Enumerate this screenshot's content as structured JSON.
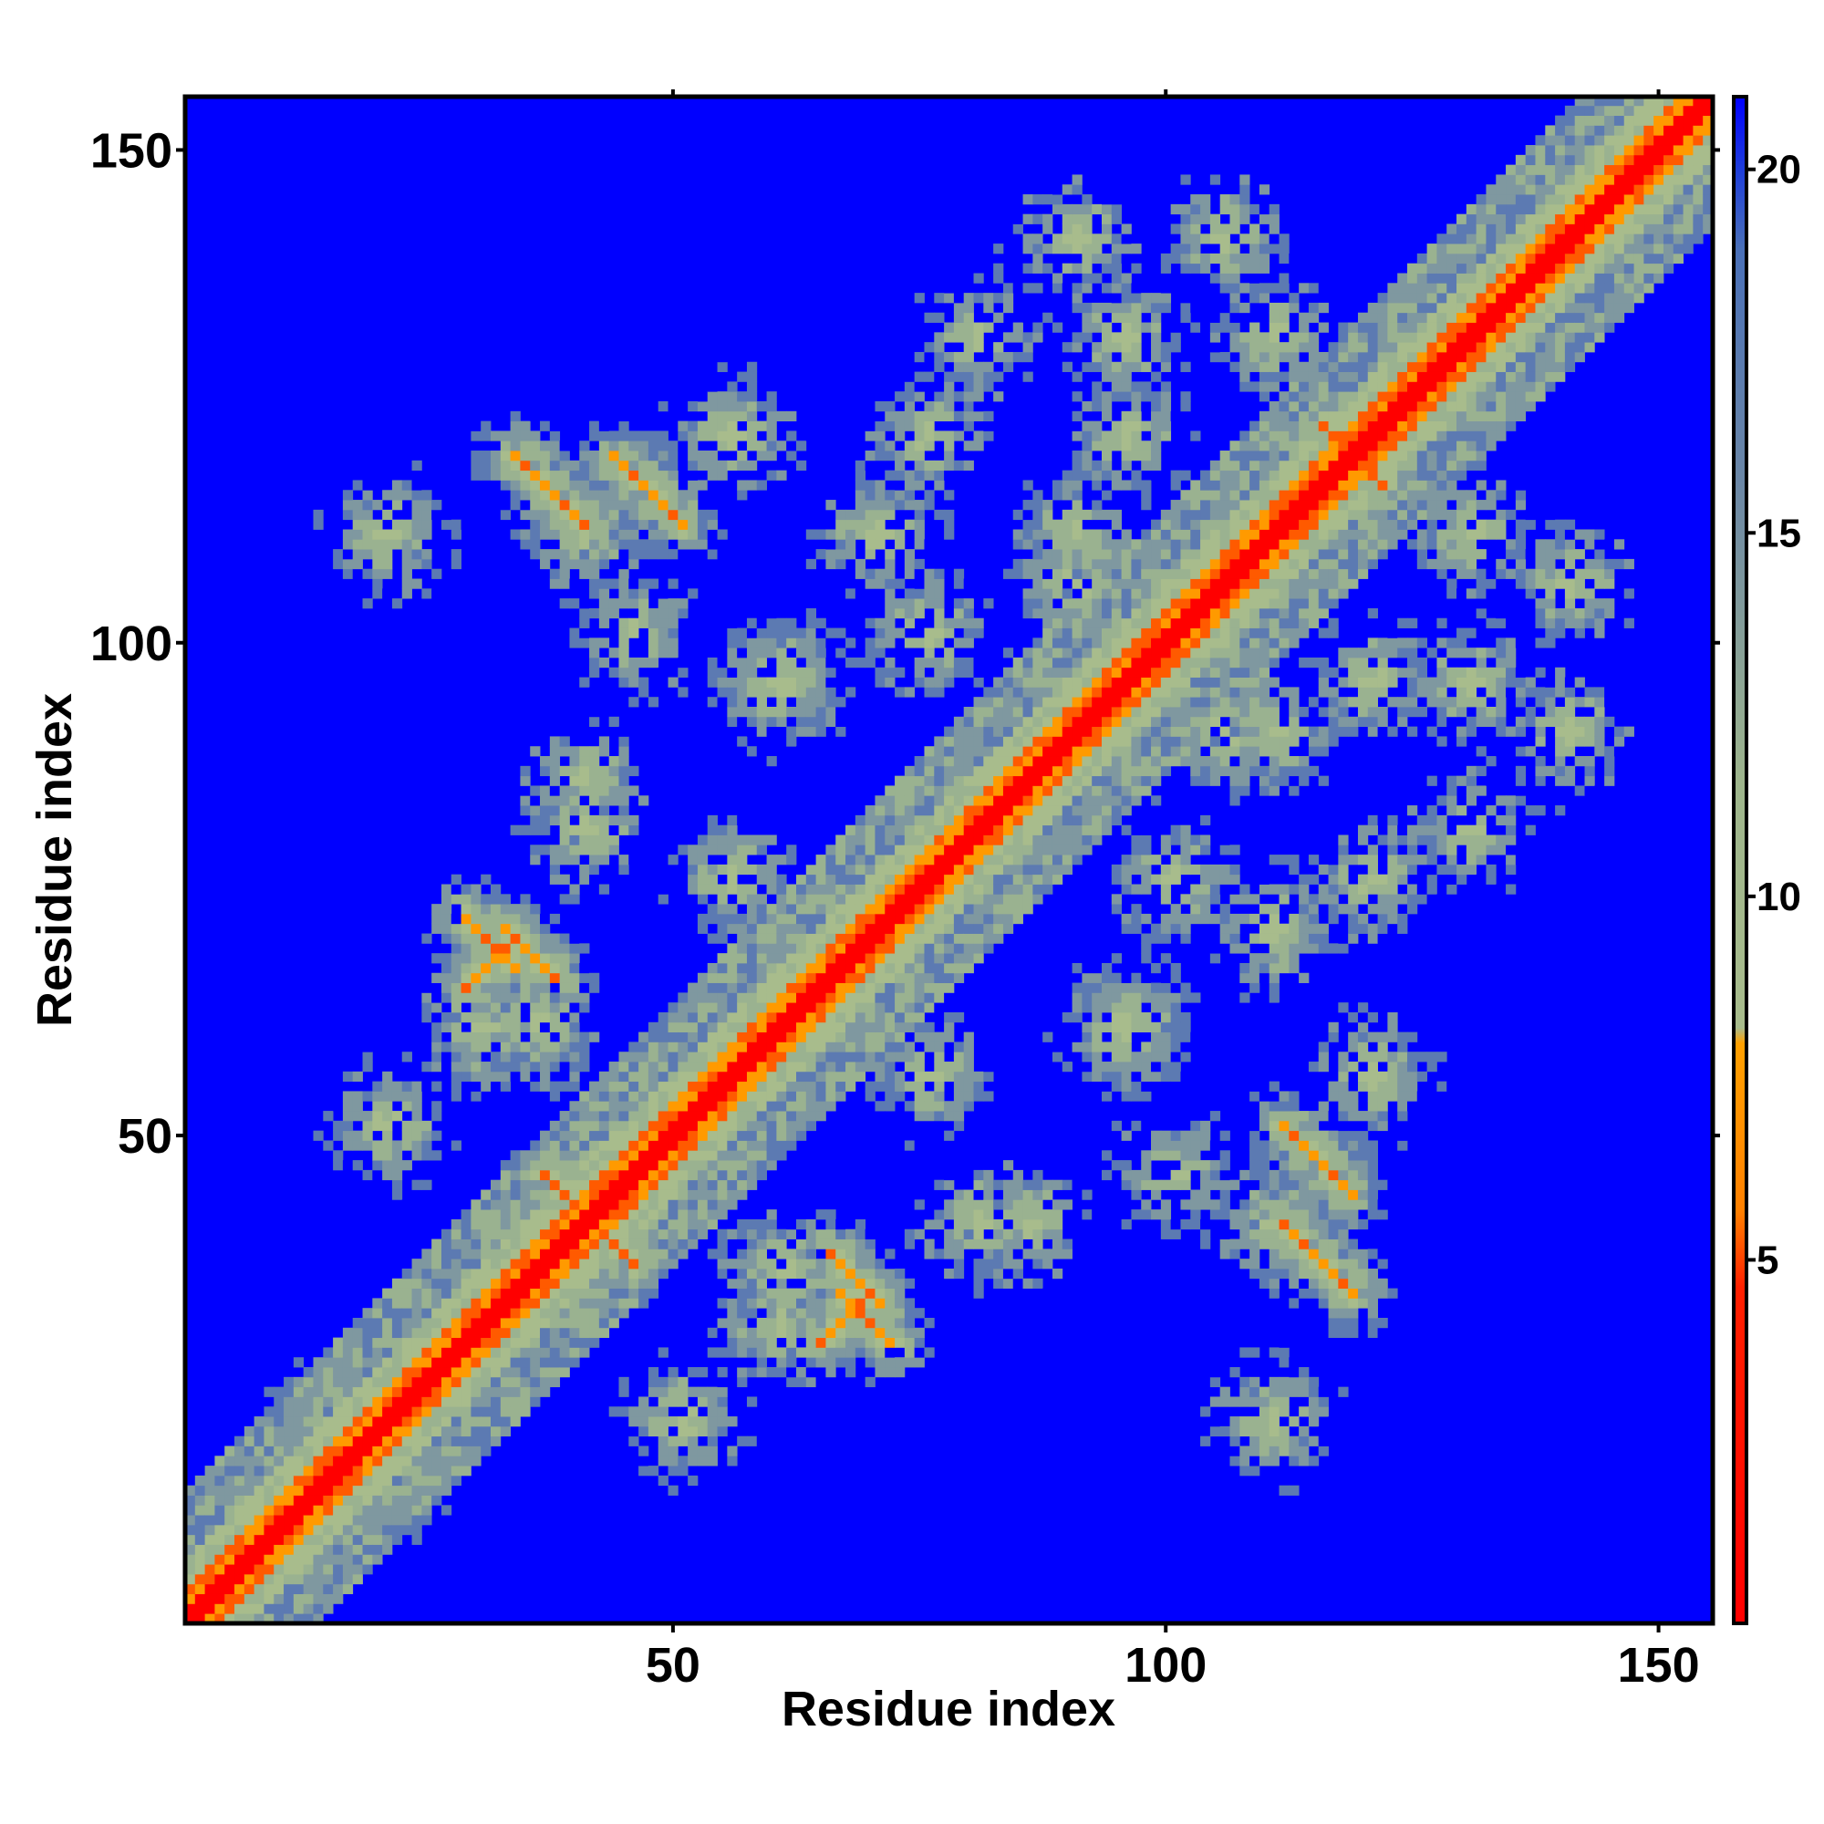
{
  "chart_data": {
    "type": "heatmap",
    "xlabel": "Residue index",
    "ylabel": "Residue index",
    "xlim": [
      1,
      155
    ],
    "ylim": [
      1,
      155
    ],
    "x_ticks": [
      50,
      100,
      150
    ],
    "y_ticks": [
      50,
      100,
      150
    ],
    "colorbar": {
      "range": [
        0,
        21
      ],
      "ticks": [
        5,
        10,
        15,
        20
      ],
      "colors": {
        "high": "#0000ff",
        "mid": "#a8bc8c",
        "upper_mid": "#5a7ab0",
        "low_mid": "#ff9900",
        "low": "#ff0000"
      }
    },
    "description_of_values": "Symmetric residue-residue distance map; values are distances with low values (red) along the diagonal and contact bands, high values (blue) elsewhere",
    "bands": [
      {
        "type": "diagonal",
        "value": 1
      },
      {
        "type": "antiparallel",
        "center": [
          40,
          40
        ],
        "length": 12
      },
      {
        "type": "antiparallel",
        "center": [
          38,
          117
        ],
        "length": 12
      },
      {
        "type": "antiparallel",
        "center": [
          67,
          32
        ],
        "length": 10
      },
      {
        "type": "antiparallel",
        "center": [
          121,
          120
        ],
        "length": 10
      },
      {
        "type": "antiparallel",
        "center": [
          115,
          45
        ],
        "length": 10
      },
      {
        "type": "parallel",
        "center": [
          68,
          35
        ],
        "length": 8
      }
    ]
  },
  "axes": {
    "x_title": "Residue index",
    "y_title": "Residue index",
    "x_tick_labels": [
      "50",
      "100",
      "150"
    ],
    "y_tick_labels": [
      "50",
      "100",
      "150"
    ],
    "colorbar_tick_labels": [
      "5",
      "10",
      "15",
      "20"
    ]
  }
}
